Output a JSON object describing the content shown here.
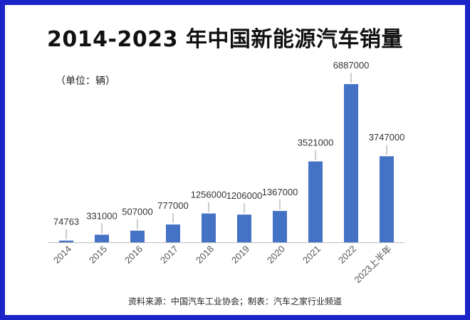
{
  "header": {
    "title": "2014-2023 年中国新能源汽车销量",
    "unit_note": "（单位：辆）"
  },
  "footer": {
    "source": "资料来源：中国汽车工业协会；制表：汽车之家行业频道"
  },
  "colors": {
    "frame": "#1a24c8",
    "bar": "#4472c4",
    "axis": "#bfbfbf",
    "leader": "#9a9a9a"
  },
  "chart_data": {
    "type": "bar",
    "title": "2014-2023 年中国新能源汽车销量",
    "ylabel": "（单位：辆）",
    "categories": [
      "2014",
      "2015",
      "2016",
      "2017",
      "2018",
      "2019",
      "2020",
      "2021",
      "2022",
      "2023上半年"
    ],
    "values": [
      74763,
      331000,
      507000,
      777000,
      1256000,
      1206000,
      1367000,
      3521000,
      6887000,
      3747000
    ],
    "value_labels": [
      "74763",
      "331000",
      "507000",
      "777000",
      "1256000",
      "1206000",
      "1367000",
      "3521000",
      "6887000",
      "3747000"
    ],
    "ylim": [
      0,
      6887000
    ],
    "grid": false,
    "legend": "none"
  }
}
